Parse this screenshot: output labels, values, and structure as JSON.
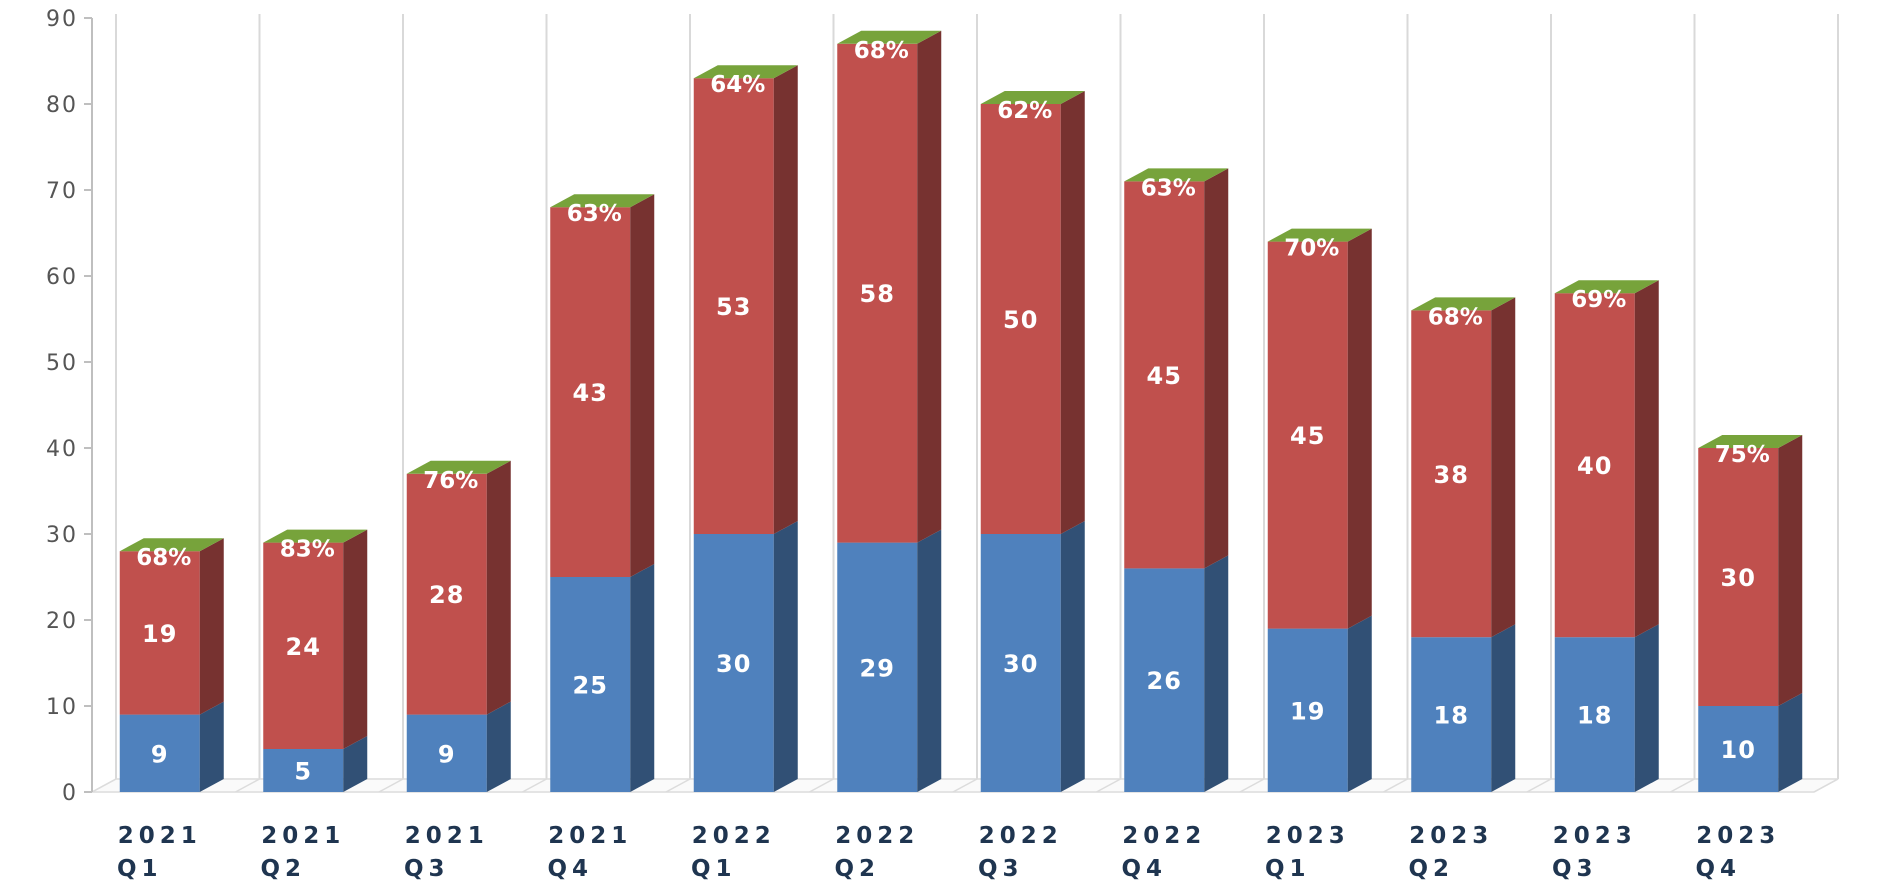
{
  "chart_data": {
    "type": "bar",
    "stacked": true,
    "three_d": true,
    "title": "",
    "xlabel": "",
    "ylabel": "",
    "ylim": [
      0,
      90
    ],
    "yticks": [
      "0",
      "10",
      "20",
      "30",
      "40",
      "50",
      "60",
      "70",
      "80",
      "90"
    ],
    "grid": "vertical",
    "legend": "none",
    "categories": [
      {
        "year": "2021",
        "quarter": "Q1"
      },
      {
        "year": "2021",
        "quarter": "Q2"
      },
      {
        "year": "2021",
        "quarter": "Q3"
      },
      {
        "year": "2021",
        "quarter": "Q4"
      },
      {
        "year": "2022",
        "quarter": "Q1"
      },
      {
        "year": "2022",
        "quarter": "Q2"
      },
      {
        "year": "2022",
        "quarter": "Q3"
      },
      {
        "year": "2022",
        "quarter": "Q4"
      },
      {
        "year": "2023",
        "quarter": "Q1"
      },
      {
        "year": "2023",
        "quarter": "Q2"
      },
      {
        "year": "2023",
        "quarter": "Q3"
      },
      {
        "year": "2023",
        "quarter": "Q4"
      }
    ],
    "series": [
      {
        "color": "#4f81bd",
        "values": [
          9,
          5,
          9,
          25,
          30,
          29,
          30,
          26,
          19,
          18,
          18,
          10
        ]
      },
      {
        "color": "#c0504d",
        "values": [
          19,
          24,
          28,
          43,
          53,
          58,
          50,
          45,
          45,
          38,
          40,
          30
        ]
      }
    ],
    "top_labels": [
      "68%",
      "83%",
      "76%",
      "63%",
      "64%",
      "68%",
      "62%",
      "63%",
      "70%",
      "68%",
      "69%",
      "75%"
    ],
    "top_cap_color": "#77a33b"
  }
}
